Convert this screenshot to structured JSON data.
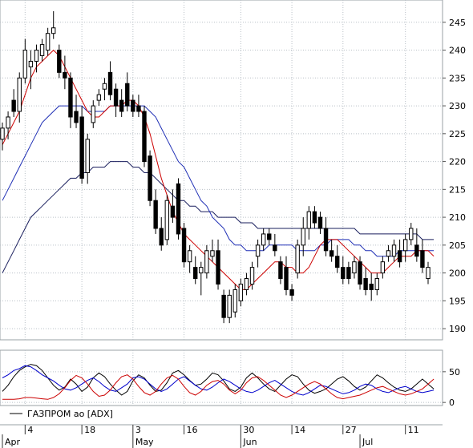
{
  "chart_data": [
    {
      "type": "candlestick",
      "panel": "price",
      "y_ticks": [
        190,
        195,
        200,
        205,
        210,
        215,
        220,
        225,
        230,
        235,
        240,
        245
      ],
      "ylim": [
        188,
        249
      ],
      "candles": [
        {
          "o": 224,
          "h": 227,
          "l": 222,
          "c": 226
        },
        {
          "o": 226,
          "h": 229,
          "l": 224,
          "c": 228
        },
        {
          "o": 231,
          "h": 233,
          "l": 228,
          "c": 229
        },
        {
          "o": 229,
          "h": 236,
          "l": 227,
          "c": 235
        },
        {
          "o": 235,
          "h": 242,
          "l": 234,
          "c": 240
        },
        {
          "o": 237,
          "h": 240,
          "l": 233,
          "c": 238
        },
        {
          "o": 238,
          "h": 241,
          "l": 236,
          "c": 240
        },
        {
          "o": 239,
          "h": 242,
          "l": 238,
          "c": 241
        },
        {
          "o": 240,
          "h": 244,
          "l": 239,
          "c": 243
        },
        {
          "o": 243,
          "h": 247,
          "l": 242,
          "c": 244
        },
        {
          "o": 240,
          "h": 241,
          "l": 235,
          "c": 236
        },
        {
          "o": 236,
          "h": 239,
          "l": 233,
          "c": 235
        },
        {
          "o": 235,
          "h": 236,
          "l": 226,
          "c": 228
        },
        {
          "o": 229,
          "h": 232,
          "l": 226,
          "c": 227
        },
        {
          "o": 228,
          "h": 230,
          "l": 216,
          "c": 217
        },
        {
          "o": 218,
          "h": 225,
          "l": 216,
          "c": 224
        },
        {
          "o": 227,
          "h": 231,
          "l": 226,
          "c": 230
        },
        {
          "o": 231,
          "h": 233,
          "l": 230,
          "c": 232
        },
        {
          "o": 233,
          "h": 235,
          "l": 231,
          "c": 234
        },
        {
          "o": 236,
          "h": 238,
          "l": 231,
          "c": 232
        },
        {
          "o": 233,
          "h": 234,
          "l": 228,
          "c": 230
        },
        {
          "o": 231,
          "h": 233,
          "l": 228,
          "c": 229
        },
        {
          "o": 234,
          "h": 236,
          "l": 229,
          "c": 230
        },
        {
          "o": 231,
          "h": 232,
          "l": 228,
          "c": 229
        },
        {
          "o": 230,
          "h": 232,
          "l": 228,
          "c": 229
        },
        {
          "o": 229,
          "h": 230,
          "l": 219,
          "c": 220
        },
        {
          "o": 221,
          "h": 222,
          "l": 212,
          "c": 213
        },
        {
          "o": 213,
          "h": 215,
          "l": 207,
          "c": 208
        },
        {
          "o": 208,
          "h": 210,
          "l": 204,
          "c": 205
        },
        {
          "o": 206,
          "h": 214,
          "l": 205,
          "c": 213
        },
        {
          "o": 212,
          "h": 215,
          "l": 209,
          "c": 210
        },
        {
          "o": 216,
          "h": 217,
          "l": 206,
          "c": 207
        },
        {
          "o": 208,
          "h": 209,
          "l": 201,
          "c": 202
        },
        {
          "o": 202,
          "h": 205,
          "l": 200,
          "c": 204
        },
        {
          "o": 201,
          "h": 203,
          "l": 198,
          "c": 199
        },
        {
          "o": 200,
          "h": 202,
          "l": 196,
          "c": 201
        },
        {
          "o": 200,
          "h": 205,
          "l": 199,
          "c": 204
        },
        {
          "o": 203,
          "h": 206,
          "l": 202,
          "c": 204
        },
        {
          "o": 204,
          "h": 206,
          "l": 197,
          "c": 198
        },
        {
          "o": 196,
          "h": 197,
          "l": 191,
          "c": 192
        },
        {
          "o": 192,
          "h": 197,
          "l": 191,
          "c": 196
        },
        {
          "o": 193,
          "h": 198,
          "l": 192,
          "c": 197
        },
        {
          "o": 195,
          "h": 199,
          "l": 194,
          "c": 198
        },
        {
          "o": 197,
          "h": 200,
          "l": 196,
          "c": 199
        },
        {
          "o": 198,
          "h": 202,
          "l": 197,
          "c": 201
        },
        {
          "o": 203,
          "h": 206,
          "l": 201,
          "c": 205
        },
        {
          "o": 205,
          "h": 208,
          "l": 204,
          "c": 207
        },
        {
          "o": 207,
          "h": 208,
          "l": 205,
          "c": 206
        },
        {
          "o": 205,
          "h": 207,
          "l": 203,
          "c": 204
        },
        {
          "o": 202,
          "h": 203,
          "l": 198,
          "c": 199
        },
        {
          "o": 201,
          "h": 203,
          "l": 196,
          "c": 197
        },
        {
          "o": 197,
          "h": 198,
          "l": 195,
          "c": 196
        },
        {
          "o": 200,
          "h": 206,
          "l": 199,
          "c": 205
        },
        {
          "o": 205,
          "h": 210,
          "l": 203,
          "c": 208
        },
        {
          "o": 208,
          "h": 212,
          "l": 206,
          "c": 211
        },
        {
          "o": 211,
          "h": 212,
          "l": 208,
          "c": 209
        },
        {
          "o": 210,
          "h": 211,
          "l": 207,
          "c": 208
        },
        {
          "o": 208,
          "h": 210,
          "l": 203,
          "c": 204
        },
        {
          "o": 204,
          "h": 206,
          "l": 202,
          "c": 203
        },
        {
          "o": 203,
          "h": 205,
          "l": 200,
          "c": 201
        },
        {
          "o": 201,
          "h": 203,
          "l": 198,
          "c": 199
        },
        {
          "o": 201,
          "h": 202,
          "l": 198,
          "c": 199
        },
        {
          "o": 200,
          "h": 203,
          "l": 199,
          "c": 202
        },
        {
          "o": 202,
          "h": 203,
          "l": 197,
          "c": 198
        },
        {
          "o": 199,
          "h": 201,
          "l": 196,
          "c": 197
        },
        {
          "o": 198,
          "h": 200,
          "l": 195,
          "c": 197
        },
        {
          "o": 197,
          "h": 200,
          "l": 196,
          "c": 199
        },
        {
          "o": 200,
          "h": 203,
          "l": 199,
          "c": 202
        },
        {
          "o": 203,
          "h": 205,
          "l": 202,
          "c": 204
        },
        {
          "o": 203,
          "h": 206,
          "l": 202,
          "c": 205
        },
        {
          "o": 204,
          "h": 206,
          "l": 201,
          "c": 202
        },
        {
          "o": 204,
          "h": 207,
          "l": 202,
          "c": 206
        },
        {
          "o": 206,
          "h": 209,
          "l": 205,
          "c": 208
        },
        {
          "o": 205,
          "h": 208,
          "l": 202,
          "c": 203
        },
        {
          "o": 204,
          "h": 206,
          "l": 200,
          "c": 201
        },
        {
          "o": 199,
          "h": 202,
          "l": 198,
          "c": 201
        }
      ],
      "ma_red": [
        223,
        225,
        227,
        229,
        232,
        235,
        237,
        238,
        239,
        240,
        239,
        237,
        235,
        233,
        231,
        229,
        228,
        228,
        229,
        230,
        230,
        230,
        231,
        231,
        230,
        228,
        225,
        221,
        217,
        214,
        211,
        209,
        207,
        206,
        205,
        204,
        203,
        202,
        201,
        200,
        199,
        198,
        197,
        197,
        198,
        199,
        200,
        201,
        202,
        202,
        201,
        201,
        200,
        200,
        201,
        203,
        205,
        206,
        206,
        206,
        205,
        204,
        203,
        202,
        201,
        200,
        200,
        200,
        201,
        202,
        203,
        203,
        203,
        204,
        204,
        204,
        203
      ],
      "ma_blue": [
        213,
        215,
        217,
        219,
        221,
        223,
        225,
        227,
        228,
        229,
        230,
        230,
        230,
        230,
        230,
        229,
        229,
        229,
        229,
        230,
        230,
        230,
        230,
        230,
        230,
        230,
        229,
        228,
        226,
        224,
        222,
        220,
        219,
        217,
        215,
        213,
        212,
        210,
        209,
        208,
        206,
        205,
        205,
        204,
        204,
        204,
        204,
        205,
        205,
        205,
        205,
        205,
        204,
        204,
        204,
        204,
        205,
        205,
        206,
        206,
        206,
        206,
        205,
        205,
        204,
        204,
        203,
        203,
        203,
        203,
        204,
        204,
        204,
        204,
        204,
        204,
        204
      ],
      "ma_dark": [
        200,
        202,
        204,
        206,
        208,
        210,
        211,
        212,
        213,
        214,
        215,
        216,
        217,
        217,
        218,
        218,
        219,
        219,
        219,
        220,
        220,
        220,
        220,
        219,
        219,
        218,
        218,
        217,
        216,
        215,
        214,
        213,
        213,
        212,
        212,
        211,
        211,
        211,
        210,
        210,
        210,
        210,
        209,
        209,
        209,
        208,
        208,
        208,
        208,
        208,
        208,
        208,
        208,
        208,
        208,
        208,
        208,
        208,
        208,
        208,
        208,
        208,
        208,
        207,
        207,
        207,
        207,
        207,
        207,
        207,
        207,
        207,
        207,
        207,
        206,
        206,
        206
      ]
    },
    {
      "type": "line",
      "panel": "ADX",
      "y_ticks": [
        0,
        50
      ],
      "ylim": [
        -5,
        85
      ],
      "series": [
        {
          "color": "#000000",
          "values": [
            18,
            28,
            42,
            52,
            58,
            62,
            60,
            52,
            40,
            28,
            20,
            25,
            38,
            30,
            18,
            25,
            40,
            48,
            42,
            30,
            20,
            12,
            18,
            35,
            45,
            40,
            28,
            18,
            20,
            32,
            48,
            52,
            45,
            36,
            28,
            30,
            38,
            48,
            45,
            35,
            22,
            18,
            25,
            40,
            48,
            40,
            30,
            22,
            18,
            28,
            38,
            45,
            42,
            30,
            20,
            15,
            18,
            22,
            30,
            38,
            42,
            35,
            26,
            20,
            25,
            35,
            45,
            40,
            32,
            25,
            20,
            18,
            22,
            30,
            38,
            30,
            22
          ]
        },
        {
          "color": "#0000cc",
          "values": [
            40,
            45,
            52,
            55,
            60,
            58,
            52,
            45,
            40,
            35,
            28,
            22,
            20,
            24,
            30,
            36,
            40,
            34,
            26,
            20,
            18,
            24,
            30,
            40,
            42,
            38,
            30,
            22,
            18,
            22,
            30,
            38,
            42,
            35,
            28,
            22,
            20,
            25,
            32,
            38,
            34,
            28,
            22,
            18,
            16,
            20,
            26,
            32,
            36,
            30,
            24,
            18,
            14,
            12,
            16,
            22,
            28,
            26,
            22,
            18,
            14,
            16,
            20,
            26,
            30,
            28,
            22,
            18,
            16,
            20,
            24,
            26,
            22,
            18,
            16,
            18,
            20
          ]
        },
        {
          "color": "#cc0000",
          "values": [
            5,
            5,
            5,
            6,
            8,
            8,
            7,
            6,
            5,
            8,
            14,
            24,
            36,
            44,
            40,
            30,
            18,
            10,
            12,
            20,
            32,
            42,
            45,
            38,
            26,
            16,
            12,
            18,
            30,
            40,
            44,
            38,
            26,
            16,
            12,
            18,
            28,
            34,
            36,
            30,
            20,
            14,
            20,
            32,
            40,
            42,
            36,
            28,
            20,
            12,
            8,
            12,
            18,
            24,
            30,
            34,
            30,
            22,
            14,
            8,
            6,
            8,
            10,
            12,
            16,
            20,
            24,
            26,
            22,
            18,
            14,
            12,
            14,
            18,
            22,
            30,
            38
          ]
        }
      ]
    }
  ],
  "x_labels": [
    {
      "text": "4",
      "index": 4
    },
    {
      "text": "18",
      "index": 14
    },
    {
      "text": "3",
      "index": 23
    },
    {
      "text": "16",
      "index": 32
    },
    {
      "text": "30",
      "index": 42
    },
    {
      "text": "14",
      "index": 51
    },
    {
      "text": "27",
      "index": 60
    },
    {
      "text": "11",
      "index": 71
    }
  ],
  "month_labels": [
    {
      "text": "Apr",
      "index": 0
    },
    {
      "text": "May",
      "index": 23
    },
    {
      "text": "Jun",
      "index": 42
    },
    {
      "text": "Jul",
      "index": 63
    }
  ],
  "legend": {
    "label": "ГАЗПРОМ ао [ADX]"
  }
}
